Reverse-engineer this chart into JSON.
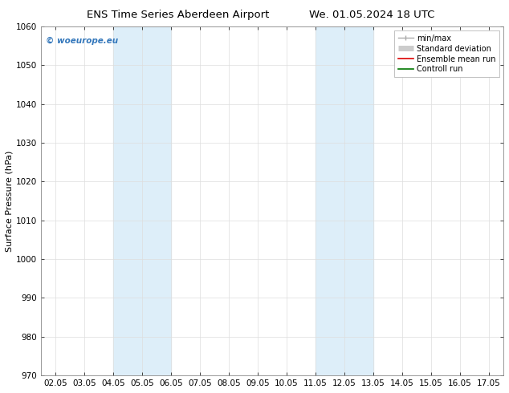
{
  "title_left": "ENS Time Series Aberdeen Airport",
  "title_right": "We. 01.05.2024 18 UTC",
  "ylabel": "Surface Pressure (hPa)",
  "ylim": [
    970,
    1060
  ],
  "yticks": [
    970,
    980,
    990,
    1000,
    1010,
    1020,
    1030,
    1040,
    1050,
    1060
  ],
  "xlim": [
    0,
    15
  ],
  "xtick_labels": [
    "02.05",
    "03.05",
    "04.05",
    "05.05",
    "06.05",
    "07.05",
    "08.05",
    "09.05",
    "10.05",
    "11.05",
    "12.05",
    "13.05",
    "14.05",
    "15.05",
    "16.05",
    "17.05"
  ],
  "xtick_positions": [
    0,
    1,
    2,
    3,
    4,
    5,
    6,
    7,
    8,
    9,
    10,
    11,
    12,
    13,
    14,
    15
  ],
  "shaded_regions": [
    {
      "xmin": 2,
      "xmax": 4,
      "color": "#ddeef9"
    },
    {
      "xmin": 9,
      "xmax": 11,
      "color": "#ddeef9"
    }
  ],
  "watermark": "© woeurope.eu",
  "watermark_color": "#3377bb",
  "legend_items": [
    {
      "label": "min/max",
      "color": "#aaaaaa",
      "lw": 1.0
    },
    {
      "label": "Standard deviation",
      "color": "#cccccc",
      "lw": 5
    },
    {
      "label": "Ensemble mean run",
      "color": "#dd0000",
      "lw": 1.2
    },
    {
      "label": "Controll run",
      "color": "#007700",
      "lw": 1.2
    }
  ],
  "background_color": "#ffffff",
  "grid_color": "#dddddd",
  "title_fontsize": 9.5,
  "tick_fontsize": 7.5,
  "ylabel_fontsize": 8,
  "legend_fontsize": 7,
  "watermark_fontsize": 7.5
}
